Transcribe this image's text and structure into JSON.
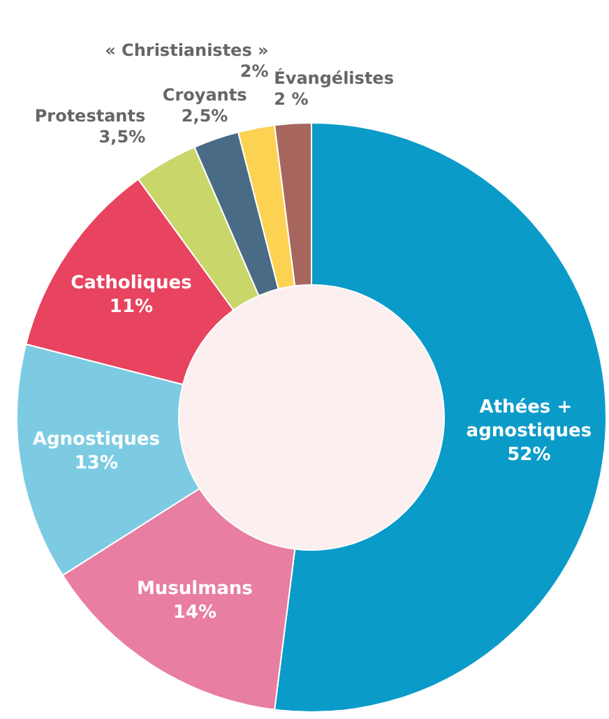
{
  "chart_data": {
    "type": "donut",
    "categories": [
      "Athées + agnostiques",
      "Musulmans",
      "Agnostiques",
      "Catholiques",
      "Protestants",
      "Croyants",
      "« Christianistes »",
      "Évangélistes"
    ],
    "values": [
      52,
      14,
      13,
      11,
      3.5,
      2.5,
      2,
      2
    ],
    "value_labels": [
      "52%",
      "14%",
      "13%",
      "11%",
      "3,5%",
      "2,5%",
      "2%",
      "2 %"
    ],
    "colors": [
      "#0a9bc9",
      "#e87ea1",
      "#7ccbe3",
      "#e8435f",
      "#c8d66a",
      "#4a6b85",
      "#fcd253",
      "#a6665e"
    ],
    "legend": false
  }
}
